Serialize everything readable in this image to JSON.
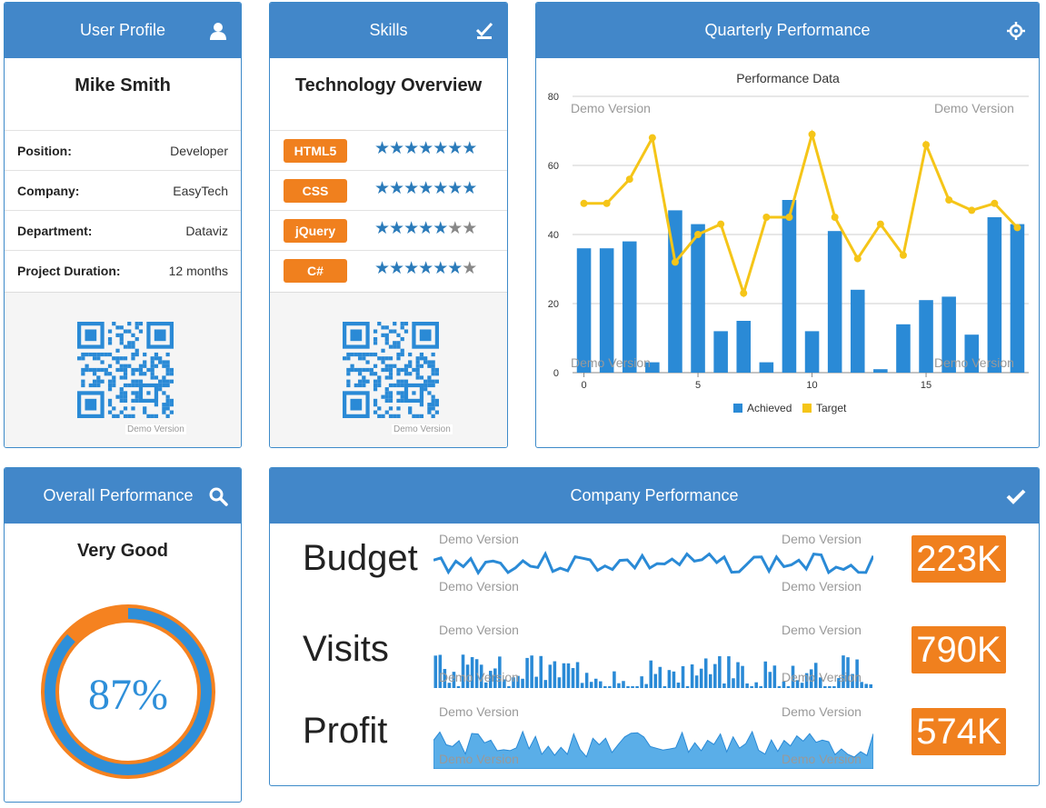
{
  "profile": {
    "title": "User Profile",
    "name": "Mike Smith",
    "rows": [
      {
        "key": "Position:",
        "value": "Developer"
      },
      {
        "key": "Company:",
        "value": "EasyTech"
      },
      {
        "key": "Department:",
        "value": "Dataviz"
      },
      {
        "key": "Project Duration:",
        "value": "12 months"
      }
    ],
    "qr_watermark": "Demo Version"
  },
  "skills": {
    "title": "Skills",
    "subtitle": "Technology Overview",
    "items": [
      {
        "name": "HTML5",
        "rating": 6.5,
        "max": 7
      },
      {
        "name": "CSS",
        "rating": 6.5,
        "max": 7
      },
      {
        "name": "jQuery",
        "rating": 4.5,
        "max": 7
      },
      {
        "name": "C#",
        "rating": 5.5,
        "max": 7
      }
    ],
    "qr_watermark": "Demo Version"
  },
  "quarterly": {
    "title": "Quarterly Performance",
    "watermark": "Demo Version"
  },
  "chart_data": {
    "type": "bar",
    "title": "Performance Data",
    "x": [
      0,
      1,
      2,
      3,
      4,
      5,
      6,
      7,
      8,
      9,
      10,
      11,
      12,
      13,
      14,
      15,
      16,
      17,
      18,
      19
    ],
    "xticks": [
      0,
      5,
      10,
      15
    ],
    "yticks": [
      0,
      20,
      40,
      60,
      80
    ],
    "ylim": [
      0,
      80
    ],
    "series": [
      {
        "name": "Achieved",
        "type": "bar",
        "color": "#2a8ad6",
        "values": [
          36,
          36,
          38,
          3,
          47,
          43,
          12,
          15,
          3,
          50,
          12,
          41,
          24,
          1,
          14,
          21,
          22,
          11,
          45,
          43
        ]
      },
      {
        "name": "Target",
        "type": "line",
        "color": "#f5c518",
        "values": [
          49,
          49,
          56,
          68,
          32,
          40,
          43,
          23,
          45,
          45,
          69,
          45,
          33,
          43,
          34,
          66,
          50,
          47,
          49,
          42
        ]
      }
    ],
    "legend": "bottom-center",
    "grid": true
  },
  "overall": {
    "title": "Overall Performance",
    "rating": "Very Good",
    "percent_label": "87%",
    "percent": 0.87
  },
  "company": {
    "title": "Company Performance",
    "watermark": "Demo Version",
    "kpis": [
      {
        "label": "Budget",
        "value": "223K"
      },
      {
        "label": "Visits",
        "value": "790K"
      },
      {
        "label": "Profit",
        "value": "574K"
      }
    ]
  },
  "colors": {
    "header": "#4287c9",
    "accent": "#f0801e",
    "bar": "#2a8ad6",
    "line": "#f5c518"
  }
}
